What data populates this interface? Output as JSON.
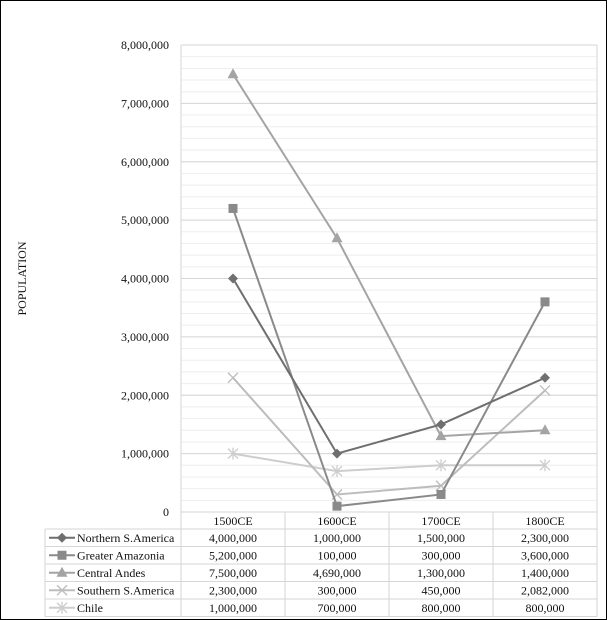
{
  "chart_data": {
    "type": "line",
    "title": "",
    "xlabel": "",
    "ylabel": "POPULATION",
    "ylim": [
      0,
      8000000
    ],
    "yticks": [
      0,
      1000000,
      2000000,
      3000000,
      4000000,
      5000000,
      6000000,
      7000000,
      8000000
    ],
    "ytick_labels": [
      "0",
      "1,000,000",
      "2,000,000",
      "3,000,000",
      "4,000,000",
      "5,000,000",
      "6,000,000",
      "7,000,000",
      "8,000,000"
    ],
    "minor_grid_step": 200000,
    "grid": true,
    "legend": "data-table-bottom",
    "categories": [
      "1500CE",
      "1600CE",
      "1700CE",
      "1800CE"
    ],
    "series": [
      {
        "name": "Northern S.America",
        "values": [
          4000000,
          1000000,
          1500000,
          2300000
        ],
        "labels": [
          "4,000,000",
          "1,000,000",
          "1,500,000",
          "2,300,000"
        ],
        "color": "#6f6f6f",
        "marker": "diamond"
      },
      {
        "name": "Greater Amazonia",
        "values": [
          5200000,
          100000,
          300000,
          3600000
        ],
        "labels": [
          "5,200,000",
          "100,000",
          "300,000",
          "3,600,000"
        ],
        "color": "#8a8a8a",
        "marker": "square"
      },
      {
        "name": "Central Andes",
        "values": [
          7500000,
          4690000,
          1300000,
          1400000
        ],
        "labels": [
          "7,500,000",
          "4,690,000",
          "1,300,000",
          "1,400,000"
        ],
        "color": "#a4a4a4",
        "marker": "triangle"
      },
      {
        "name": "Southern S.America",
        "values": [
          2300000,
          300000,
          450000,
          2082000
        ],
        "labels": [
          "2,300,000",
          "300,000",
          "450,000",
          "2,082,000"
        ],
        "color": "#bdbdbd",
        "marker": "x"
      },
      {
        "name": "Chile",
        "values": [
          1000000,
          700000,
          800000,
          800000
        ],
        "labels": [
          "1,000,000",
          "700,000",
          "800,000",
          "800,000"
        ],
        "color": "#cdcdcd",
        "marker": "asterisk"
      }
    ]
  }
}
